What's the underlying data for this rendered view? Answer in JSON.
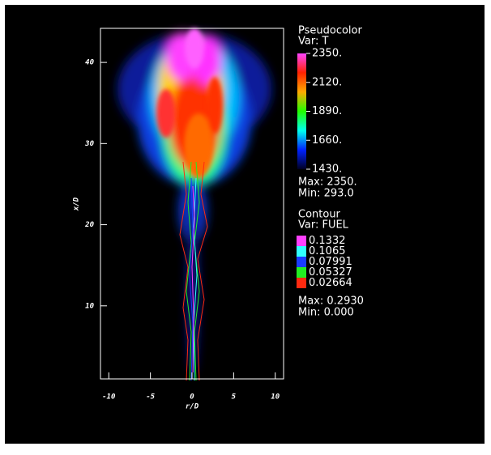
{
  "chart_data": {
    "type": "field",
    "xlabel": "r/D",
    "ylabel": "x/D",
    "xlim": [
      -11,
      11
    ],
    "ylim": [
      1,
      44.2
    ],
    "xticks": [
      -10,
      -5,
      0,
      5,
      10
    ],
    "yticks": [
      10,
      20,
      30,
      40
    ],
    "pseudocolor": {
      "title": "Pseudocolor",
      "var": "Var: T",
      "ticks": [
        {
          "value": 2350,
          "label": "2350."
        },
        {
          "value": 2120,
          "label": "2120."
        },
        {
          "value": 1890,
          "label": "1890."
        },
        {
          "value": 1660,
          "label": "1660."
        },
        {
          "value": 1430,
          "label": "1430."
        }
      ],
      "colors": [
        "#ff44ff",
        "#ff2200",
        "#ffaa00",
        "#22ff00",
        "#00ffee",
        "#0022ff",
        "#000022"
      ],
      "max": "Max: 2350.",
      "min": "Min: 293.0"
    },
    "contour": {
      "title": "Contour",
      "var": "Var: FUEL",
      "levels": [
        {
          "value": 0.1332,
          "color": "#ff40ff"
        },
        {
          "value": 0.1065,
          "color": "#30ffff"
        },
        {
          "value": 0.07991,
          "color": "#1a3cff"
        },
        {
          "value": 0.05327,
          "color": "#22ee22"
        },
        {
          "value": 0.02664,
          "color": "#ff2a10"
        }
      ],
      "max": "Max: 0.2930",
      "min": "Min: 0.000"
    }
  }
}
